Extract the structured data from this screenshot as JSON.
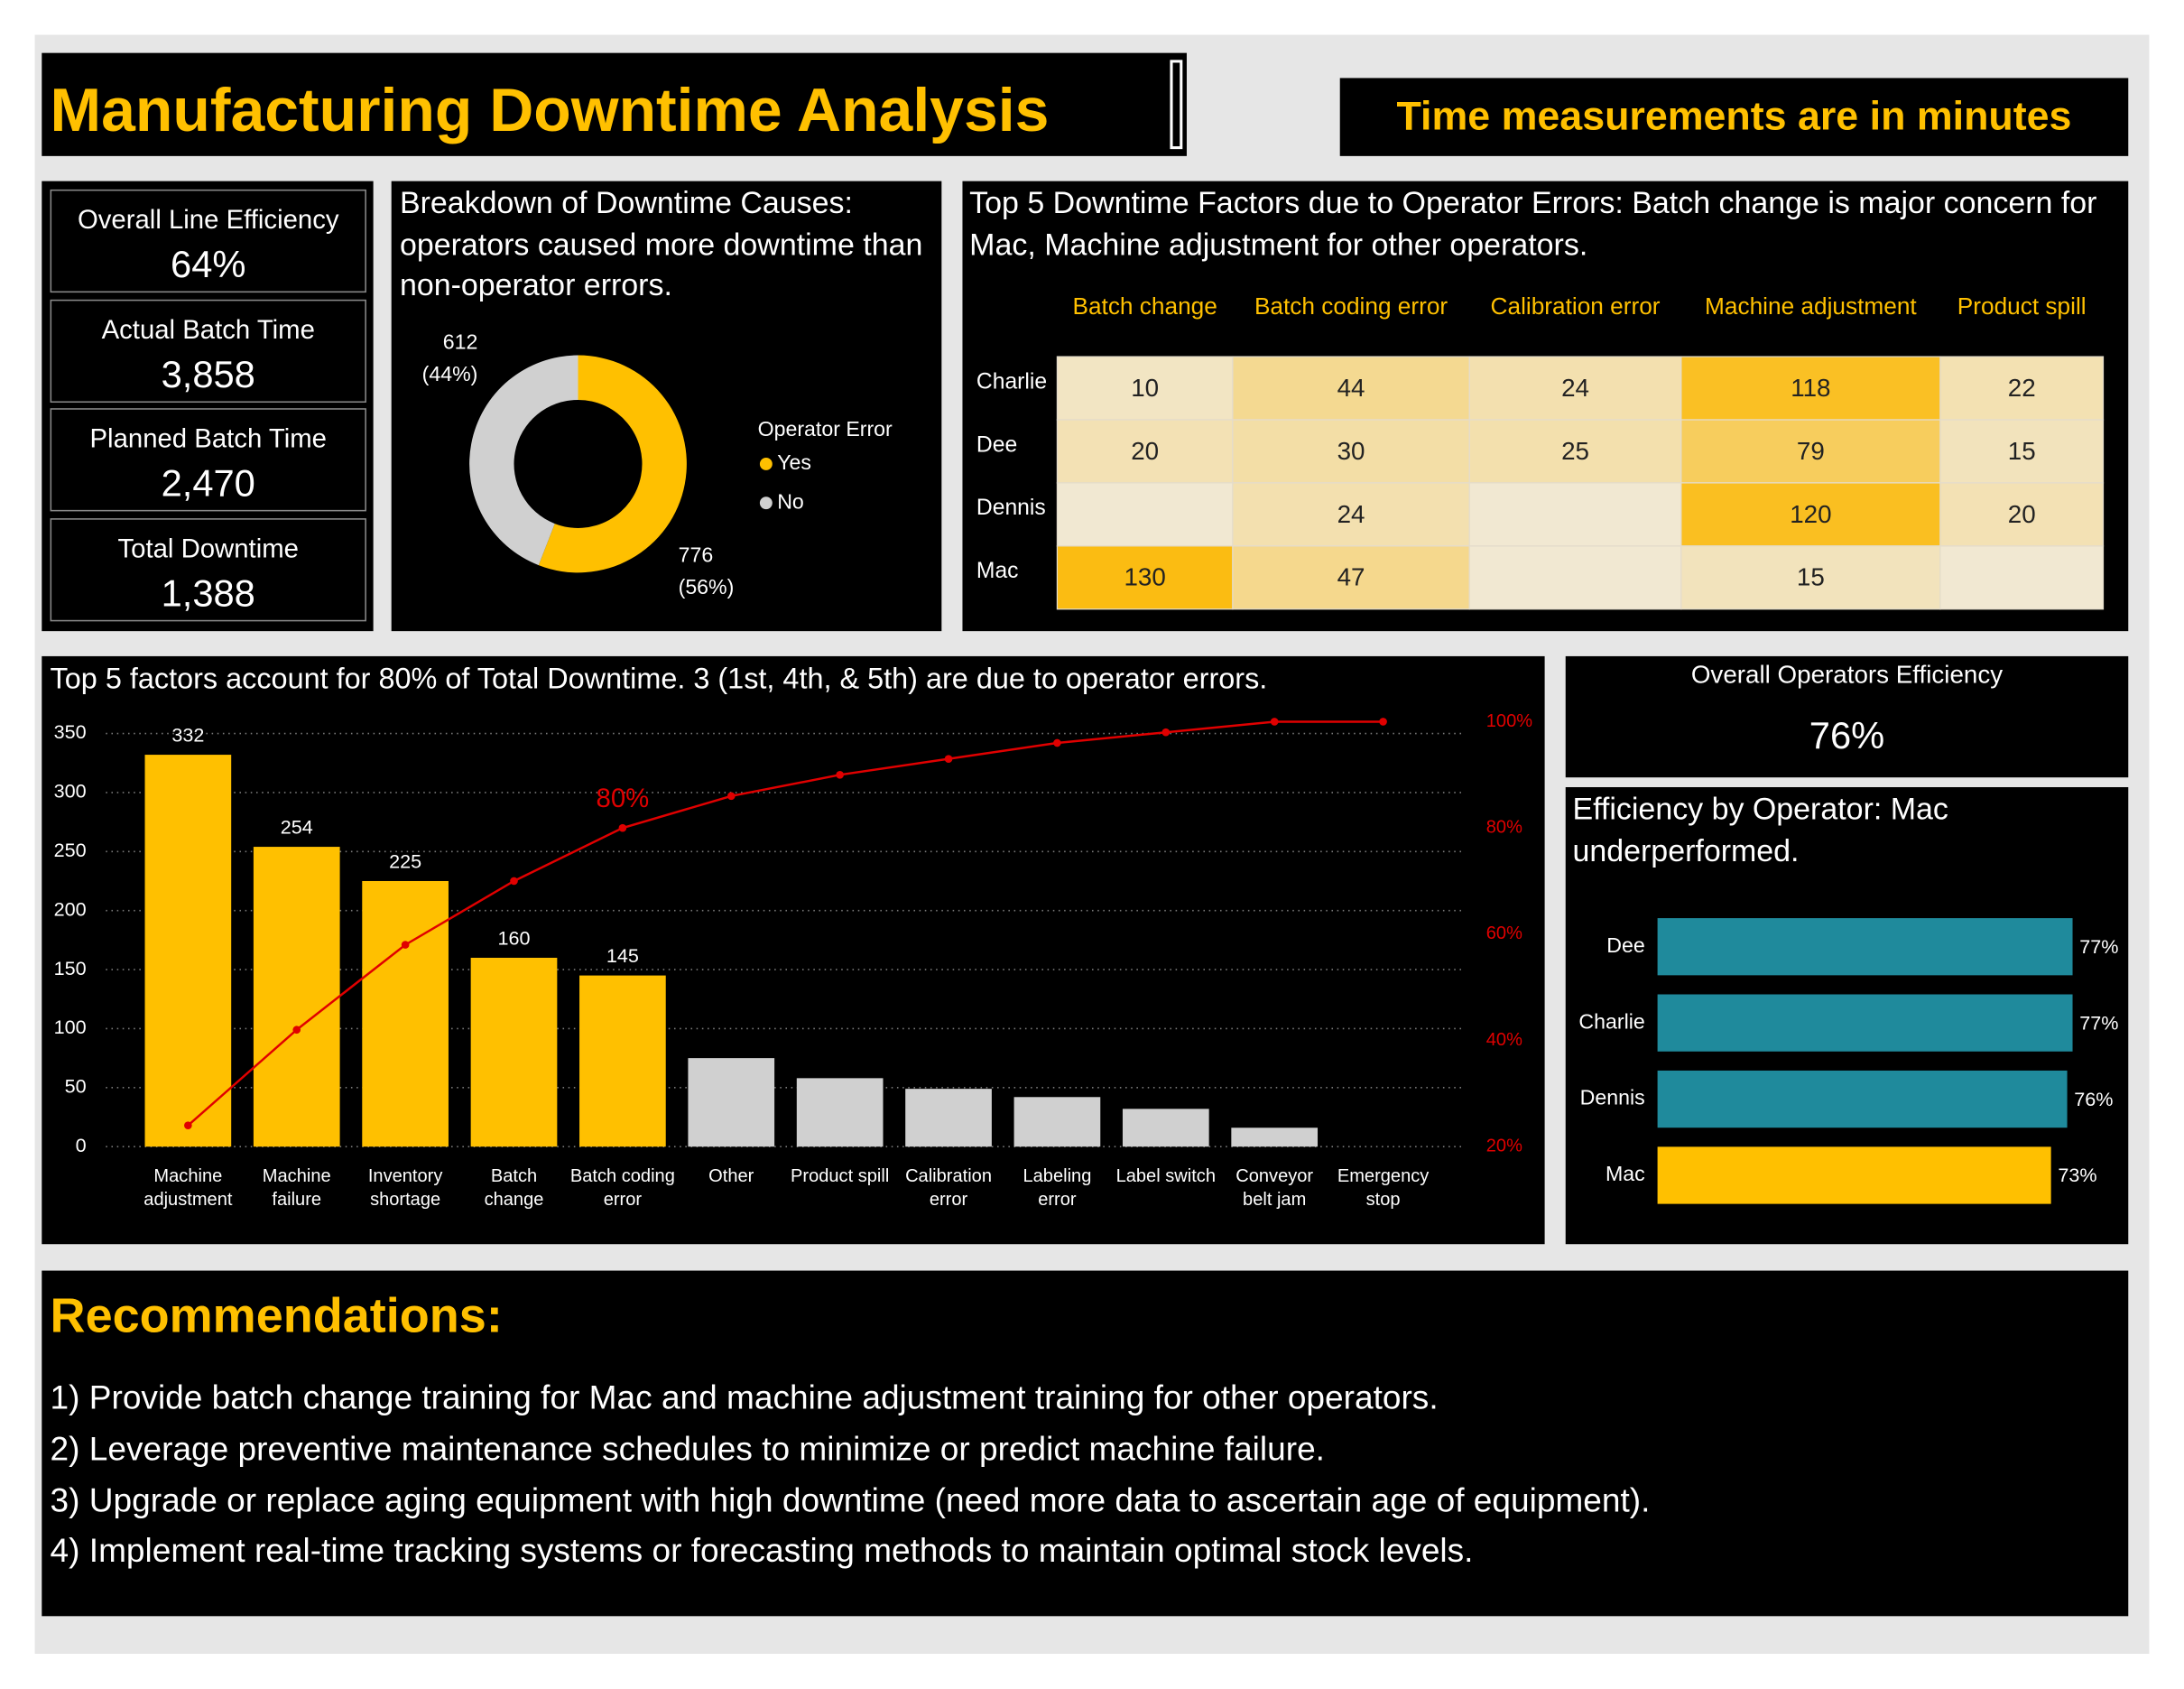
{
  "header": {
    "title": "Manufacturing Downtime Analysis",
    "note": "Time measurements are in minutes"
  },
  "kpis": [
    {
      "label": "Overall Line Efficiency",
      "value": "64%"
    },
    {
      "label": "Actual Batch Time",
      "value": "3,858"
    },
    {
      "label": "Planned Batch Time",
      "value": "2,470"
    },
    {
      "label": "Total Downtime",
      "value": "1,388"
    }
  ],
  "operators_efficiency": {
    "label": "Overall Operators Efficiency",
    "value": "76%"
  },
  "chart_data": [
    {
      "type": "donut",
      "title": "Breakdown of Downtime Causes: operators caused more downtime than non-operator errors.",
      "legend_title": "Operator Error",
      "categories": [
        "Yes",
        "No"
      ],
      "values": [
        776,
        612
      ],
      "shares": [
        56,
        44
      ],
      "share_labels": [
        "(56%)",
        "(44%)"
      ],
      "colors": [
        "#ffc000",
        "#d0d0d0"
      ]
    },
    {
      "type": "heatmap",
      "title": "Top 5 Downtime Factors due to Operator Errors: Batch change is major concern for Mac, Machine adjustment for other operators.",
      "columns": [
        "Batch change",
        "Batch coding error",
        "Calibration error",
        "Machine adjustment",
        "Product spill"
      ],
      "rows": [
        {
          "name": "Charlie",
          "values": [
            10,
            44,
            24,
            118,
            22
          ]
        },
        {
          "name": "Dee",
          "values": [
            20,
            30,
            25,
            79,
            15
          ]
        },
        {
          "name": "Dennis",
          "values": [
            null,
            24,
            null,
            120,
            20
          ]
        },
        {
          "name": "Mac",
          "values": [
            130,
            47,
            null,
            15,
            null
          ]
        }
      ],
      "colors": {
        "low": "#f1e8d2",
        "high": "#fbbc12"
      }
    },
    {
      "type": "pareto",
      "title": "Top 5 factors account for 80% of Total Downtime. 3 (1st, 4th, & 5th) are due to operator errors.",
      "categories": [
        "Machine adjustment",
        "Machine failure",
        "Inventory shortage",
        "Batch change",
        "Batch coding error",
        "Other",
        "Product spill",
        "Calibration error",
        "Labeling error",
        "Label switch",
        "Conveyor belt jam",
        "Emergency stop"
      ],
      "values": [
        332,
        254,
        225,
        160,
        145,
        75,
        58,
        49,
        42,
        32,
        16,
        0
      ],
      "colors": [
        "#ffc000",
        "#ffc000",
        "#ffc000",
        "#ffc000",
        "#ffc000",
        "#d0d0d0",
        "#d0d0d0",
        "#d0d0d0",
        "#d0d0d0",
        "#d0d0d0",
        "#d0d0d0",
        "#d0d0d0"
      ],
      "show_value": [
        true,
        true,
        true,
        true,
        true,
        false,
        false,
        false,
        false,
        false,
        false,
        false
      ],
      "line": {
        "values": [
          24,
          42,
          58,
          70,
          80,
          86,
          90,
          93,
          96,
          98,
          100,
          100
        ],
        "color": "#e00000",
        "axis": "y2"
      },
      "annotations": [
        {
          "text": "80%",
          "x": "Batch coding error"
        }
      ],
      "ylim": [
        0,
        360
      ],
      "yticks": [
        0,
        50,
        100,
        150,
        200,
        250,
        300,
        350
      ],
      "y2lim": [
        20,
        100
      ],
      "y2ticks": [
        {
          "value": 20,
          "label": "20%"
        },
        {
          "value": 40,
          "label": "40%"
        },
        {
          "value": 60,
          "label": "60%"
        },
        {
          "value": 80,
          "label": "80%"
        },
        {
          "value": 100,
          "label": "100%"
        }
      ],
      "grid": true
    },
    {
      "type": "hbar",
      "title": "Efficiency by Operator: Mac underperformed.",
      "categories": [
        "Dee",
        "Charlie",
        "Dennis",
        "Mac"
      ],
      "values": [
        77,
        77,
        76,
        73
      ],
      "value_labels": [
        "77%",
        "77%",
        "76%",
        "73%"
      ],
      "colors": [
        "#1f8a9c",
        "#1f8a9c",
        "#1f8a9c",
        "#ffc000"
      ],
      "xlim": [
        0,
        77
      ]
    }
  ],
  "recommendations": {
    "title": "Recommendations:",
    "items": [
      "1) Provide batch change training for Mac and machine adjustment training for other operators.",
      "2) Leverage preventive maintenance schedules to minimize or predict machine failure.",
      "3) Upgrade or replace aging equipment with high downtime (need more data to ascertain age of equipment).",
      "4) Implement real-time tracking systems or forecasting methods to maintain optimal stock levels."
    ]
  }
}
